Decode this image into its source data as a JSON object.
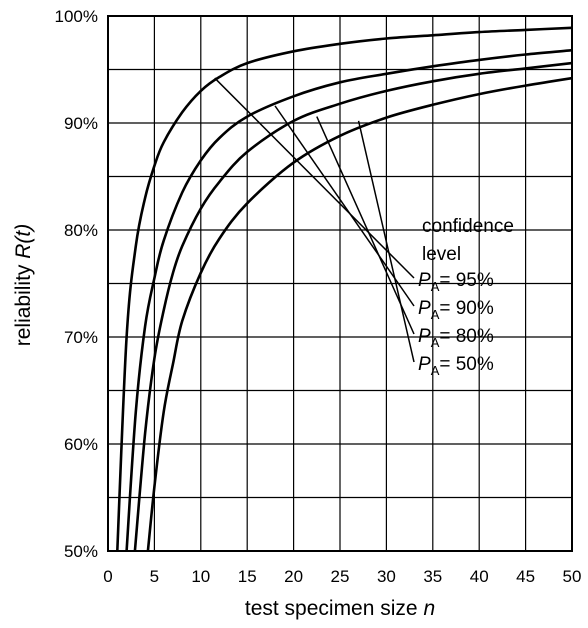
{
  "chart_data": {
    "type": "line",
    "title": "",
    "xlabel": "test specimen size",
    "xlabel_var": "n",
    "ylabel": "reliability",
    "ylabel_fn": "R(t)",
    "xlim": [
      0,
      50
    ],
    "ylim": [
      50,
      100
    ],
    "x_ticks": [
      "0",
      "5",
      "10",
      "15",
      "20",
      "25",
      "30",
      "35",
      "40",
      "45",
      "50"
    ],
    "x_tick_values": [
      0,
      5,
      10,
      15,
      20,
      25,
      30,
      35,
      40,
      45,
      50
    ],
    "y_ticks": [
      "100%",
      "90%",
      "80%",
      "70%",
      "60%",
      "50%"
    ],
    "y_tick_values": [
      100,
      90,
      80,
      70,
      60,
      50
    ],
    "grid": true,
    "grid_x_step": 5,
    "grid_y_step": 5,
    "line_color": "#000000",
    "legend_title_line1": "confidence",
    "legend_title_line2": "level",
    "series": [
      {
        "label_prefix": "P",
        "label_sub": "A",
        "label_value": "= 50%",
        "leader_from": [
          27,
          90.2
        ],
        "values": [
          [
            4.3,
            50
          ],
          [
            5,
            56
          ],
          [
            6,
            63
          ],
          [
            7,
            67.5
          ],
          [
            8,
            71.5
          ],
          [
            10,
            76
          ],
          [
            12,
            79.2
          ],
          [
            15,
            82.5
          ],
          [
            20,
            86.3
          ],
          [
            25,
            88.8
          ],
          [
            30,
            90.5
          ],
          [
            35,
            91.7
          ],
          [
            40,
            92.7
          ],
          [
            45,
            93.5
          ],
          [
            50,
            94.2
          ]
        ]
      },
      {
        "label_prefix": "P",
        "label_sub": "A",
        "label_value": "= 80%",
        "leader_from": [
          22.5,
          90.6
        ],
        "values": [
          [
            2.9,
            50
          ],
          [
            4,
            61
          ],
          [
            5,
            68
          ],
          [
            6,
            72.5
          ],
          [
            7,
            76
          ],
          [
            8,
            78.5
          ],
          [
            10,
            82
          ],
          [
            12,
            84.5
          ],
          [
            15,
            87.3
          ],
          [
            20,
            90.2
          ],
          [
            25,
            91.8
          ],
          [
            30,
            93
          ],
          [
            35,
            93.9
          ],
          [
            40,
            94.6
          ],
          [
            45,
            95.1
          ],
          [
            50,
            95.6
          ]
        ]
      },
      {
        "label_prefix": "P",
        "label_sub": "A",
        "label_value": "= 90%",
        "leader_from": [
          18,
          91.6
        ],
        "values": [
          [
            2,
            50
          ],
          [
            3,
            63
          ],
          [
            4,
            71
          ],
          [
            5,
            75.5
          ],
          [
            6,
            79
          ],
          [
            8,
            83.5
          ],
          [
            10,
            86.5
          ],
          [
            12,
            88.6
          ],
          [
            15,
            90.6
          ],
          [
            20,
            92.5
          ],
          [
            25,
            93.8
          ],
          [
            30,
            94.6
          ],
          [
            35,
            95.3
          ],
          [
            40,
            95.9
          ],
          [
            45,
            96.4
          ],
          [
            50,
            96.8
          ]
        ]
      },
      {
        "label_prefix": "P",
        "label_sub": "A",
        "label_value": "= 95%",
        "leader_from": [
          11.5,
          94.2
        ],
        "values": [
          [
            1,
            50
          ],
          [
            2,
            70
          ],
          [
            3,
            78.5
          ],
          [
            4,
            83
          ],
          [
            5,
            86
          ],
          [
            6,
            88.2
          ],
          [
            8,
            91
          ],
          [
            10,
            93
          ],
          [
            12,
            94.3
          ],
          [
            15,
            95.6
          ],
          [
            20,
            96.7
          ],
          [
            25,
            97.4
          ],
          [
            30,
            97.9
          ],
          [
            35,
            98.2
          ],
          [
            40,
            98.5
          ],
          [
            45,
            98.7
          ],
          [
            50,
            98.9
          ]
        ]
      }
    ]
  }
}
